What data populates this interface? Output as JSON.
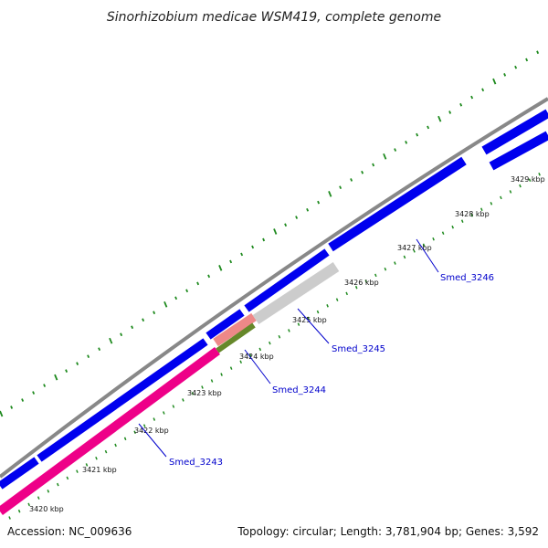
{
  "title": "Sinorhizobium medicae WSM419, complete genome",
  "accession": "Accession: NC_009636",
  "summary": "Topology: circular; Length: 3,781,904 bp; Genes: 3,592",
  "colors": {
    "backbone": "#888888",
    "cds": "#0000ee",
    "rna": "#ee0088",
    "rna_light": "#ee8888",
    "gray_feature": "#cccccc",
    "olive_feature": "#66882a",
    "tick": "#1e8a1e",
    "label": "#0000cc"
  },
  "scale": {
    "ticks": [
      {
        "label": "3420 kbp"
      },
      {
        "label": "3421 kbp"
      },
      {
        "label": "3422 kbp"
      },
      {
        "label": "3423 kbp"
      },
      {
        "label": "3424 kbp"
      },
      {
        "label": "3425 kbp"
      },
      {
        "label": "3426 kbp"
      },
      {
        "label": "3427 kbp"
      },
      {
        "label": "3428 kbp"
      },
      {
        "label": "3429 kbp"
      }
    ]
  },
  "genes": [
    {
      "label": "Smed_3243"
    },
    {
      "label": "Smed_3244"
    },
    {
      "label": "Smed_3245"
    },
    {
      "label": "Smed_3246"
    }
  ]
}
